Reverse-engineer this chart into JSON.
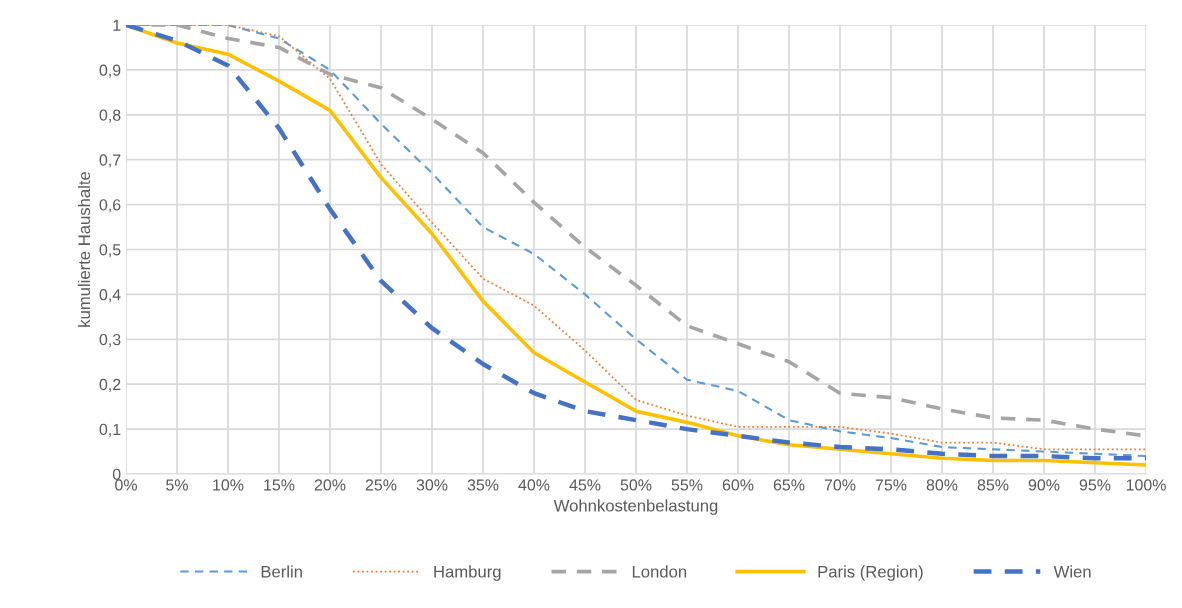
{
  "chart_data": {
    "type": "line",
    "xlabel": "Wohnkostenbelastung",
    "ylabel": "kumulierte Haushalte",
    "x": [
      0,
      5,
      10,
      15,
      20,
      25,
      30,
      35,
      40,
      45,
      50,
      55,
      60,
      65,
      70,
      75,
      80,
      85,
      90,
      95,
      100
    ],
    "xlim": [
      0,
      100
    ],
    "xticks": [
      {
        "value": 0,
        "label": "0%"
      },
      {
        "value": 5,
        "label": "5%"
      },
      {
        "value": 10,
        "label": "10%"
      },
      {
        "value": 15,
        "label": "15%"
      },
      {
        "value": 20,
        "label": "20%"
      },
      {
        "value": 25,
        "label": "25%"
      },
      {
        "value": 30,
        "label": "30%"
      },
      {
        "value": 35,
        "label": "35%"
      },
      {
        "value": 40,
        "label": "40%"
      },
      {
        "value": 45,
        "label": "45%"
      },
      {
        "value": 50,
        "label": "50%"
      },
      {
        "value": 55,
        "label": "55%"
      },
      {
        "value": 60,
        "label": "60%"
      },
      {
        "value": 65,
        "label": "65%"
      },
      {
        "value": 70,
        "label": "70%"
      },
      {
        "value": 75,
        "label": "75%"
      },
      {
        "value": 80,
        "label": "80%"
      },
      {
        "value": 85,
        "label": "85%"
      },
      {
        "value": 90,
        "label": "90%"
      },
      {
        "value": 95,
        "label": "95%"
      },
      {
        "value": 100,
        "label": "100%"
      }
    ],
    "ylim": [
      0,
      1
    ],
    "yticks": [
      0,
      {
        "value": 0.1,
        "label": "0,1"
      },
      {
        "value": 0.2,
        "label": "0,2"
      },
      {
        "value": 0.3,
        "label": "0,3"
      },
      {
        "value": 0.4,
        "label": "0,4"
      },
      {
        "value": 0.5,
        "label": "0,5"
      },
      {
        "value": 0.6,
        "label": "0,6"
      },
      {
        "value": 0.7,
        "label": "0,7"
      },
      {
        "value": 0.8,
        "label": "0,8"
      },
      {
        "value": 0.9,
        "label": "0,9"
      },
      1
    ],
    "grid": true,
    "legend": "bottom",
    "marker": "none",
    "series": [
      {
        "name": "Berlin",
        "color": "#5b9bd5",
        "line_style": "dashed",
        "values": [
          1,
          1,
          1,
          0.97,
          0.9,
          0.78,
          0.67,
          0.55,
          0.49,
          0.4,
          0.3,
          0.21,
          0.185,
          0.12,
          0.095,
          0.08,
          0.06,
          0.055,
          0.05,
          0.045,
          0.04
        ]
      },
      {
        "name": "Hamburg",
        "color": "#ed7d31",
        "line_style": "dotted",
        "values": [
          1,
          1,
          1,
          0.975,
          0.88,
          0.69,
          0.56,
          0.435,
          0.375,
          0.275,
          0.165,
          0.13,
          0.105,
          0.105,
          0.105,
          0.09,
          0.07,
          0.07,
          0.055,
          0.055,
          0.055
        ]
      },
      {
        "name": "London",
        "color": "#a5a5a5",
        "line_style": "dashed",
        "values": [
          1,
          1,
          0.97,
          0.95,
          0.89,
          0.86,
          0.79,
          0.715,
          0.605,
          0.505,
          0.42,
          0.33,
          0.29,
          0.25,
          0.18,
          0.17,
          0.145,
          0.125,
          0.12,
          0.1,
          0.085
        ]
      },
      {
        "name": "Paris (Region)",
        "color": "#ffc000",
        "line_style": "solid",
        "values": [
          1,
          0.96,
          0.935,
          0.875,
          0.81,
          0.66,
          0.535,
          0.385,
          0.27,
          0.205,
          0.14,
          0.115,
          0.085,
          0.065,
          0.055,
          0.045,
          0.035,
          0.03,
          0.03,
          0.025,
          0.02
        ]
      },
      {
        "name": "Wien",
        "color": "#4472c4",
        "line_style": "dashed",
        "values": [
          1,
          0.965,
          0.91,
          0.77,
          0.59,
          0.43,
          0.325,
          0.245,
          0.18,
          0.14,
          0.12,
          0.1,
          0.085,
          0.07,
          0.06,
          0.055,
          0.045,
          0.04,
          0.04,
          0.035,
          0.035
        ]
      }
    ]
  }
}
